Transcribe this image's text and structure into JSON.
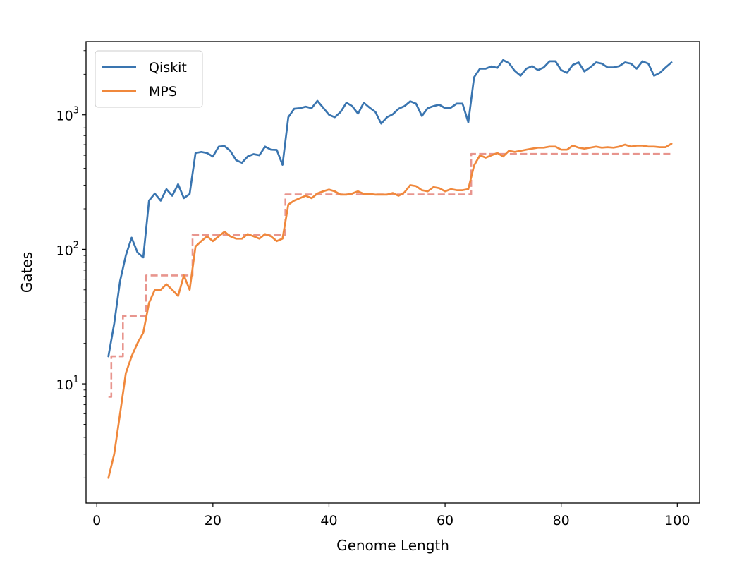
{
  "chart_data": {
    "type": "line",
    "title": "",
    "xlabel": "Genome Length",
    "ylabel": "Gates",
    "xlim": [
      -1.85,
      103.85
    ],
    "ylim": [
      1.3,
      3500
    ],
    "yscale": "log",
    "xticks": [
      0,
      20,
      40,
      60,
      80,
      100
    ],
    "yticks_major": [
      {
        "value": 10,
        "base": "10",
        "exp": "1"
      },
      {
        "value": 100,
        "base": "10",
        "exp": "2"
      },
      {
        "value": 1000,
        "base": "10",
        "exp": "3"
      }
    ],
    "grid": false,
    "legend": "upper-left",
    "series": [
      {
        "name": "Qiskit",
        "color": "#3a75b0",
        "style": "solid",
        "x": [
          2,
          3,
          4,
          5,
          6,
          7,
          8,
          9,
          10,
          11,
          12,
          13,
          14,
          15,
          16,
          17,
          18,
          19,
          20,
          21,
          22,
          23,
          24,
          25,
          26,
          27,
          28,
          29,
          30,
          31,
          32,
          33,
          34,
          35,
          36,
          37,
          38,
          39,
          40,
          41,
          42,
          43,
          44,
          45,
          46,
          47,
          48,
          49,
          50,
          51,
          52,
          53,
          54,
          55,
          56,
          57,
          58,
          59,
          60,
          61,
          62,
          63,
          64,
          65,
          66,
          67,
          68,
          69,
          70,
          71,
          72,
          73,
          74,
          75,
          76,
          77,
          78,
          79,
          80,
          81,
          82,
          83,
          84,
          85,
          86,
          87,
          88,
          89,
          90,
          91,
          92,
          93,
          94,
          95,
          96,
          97,
          98,
          99
        ],
        "values": [
          16,
          28,
          58,
          90,
          122,
          95,
          87,
          230,
          260,
          230,
          280,
          250,
          305,
          240,
          258,
          520,
          530,
          520,
          490,
          580,
          585,
          540,
          460,
          440,
          490,
          510,
          500,
          580,
          550,
          548,
          425,
          960,
          1110,
          1120,
          1150,
          1120,
          1270,
          1130,
          1000,
          960,
          1050,
          1230,
          1160,
          1020,
          1230,
          1130,
          1050,
          860,
          960,
          1010,
          1110,
          1160,
          1260,
          1210,
          980,
          1120,
          1160,
          1190,
          1120,
          1130,
          1210,
          1210,
          880,
          1900,
          2200,
          2200,
          2290,
          2230,
          2550,
          2420,
          2120,
          1950,
          2200,
          2300,
          2150,
          2250,
          2500,
          2500,
          2150,
          2050,
          2350,
          2450,
          2100,
          2250,
          2450,
          2400,
          2250,
          2250,
          2300,
          2450,
          2400,
          2200,
          2500,
          2400,
          1950,
          2050,
          2250,
          2450
        ]
      },
      {
        "name": "MPS",
        "color": "#f0883c",
        "style": "solid",
        "x": [
          2,
          3,
          4,
          5,
          6,
          7,
          8,
          9,
          10,
          11,
          12,
          13,
          14,
          15,
          16,
          17,
          18,
          19,
          20,
          21,
          22,
          23,
          24,
          25,
          26,
          27,
          28,
          29,
          30,
          31,
          32,
          33,
          34,
          35,
          36,
          37,
          38,
          39,
          40,
          41,
          42,
          43,
          44,
          45,
          46,
          47,
          48,
          49,
          50,
          51,
          52,
          53,
          54,
          55,
          56,
          57,
          58,
          59,
          60,
          61,
          62,
          63,
          64,
          65,
          66,
          67,
          68,
          69,
          70,
          71,
          72,
          73,
          74,
          75,
          76,
          77,
          78,
          79,
          80,
          81,
          82,
          83,
          84,
          85,
          86,
          87,
          88,
          89,
          90,
          91,
          92,
          93,
          94,
          95,
          96,
          97,
          98,
          99
        ],
        "values": [
          2,
          3,
          6,
          12,
          16,
          20,
          24,
          40,
          50,
          50,
          55,
          50,
          45,
          64,
          50,
          105,
          115,
          125,
          115,
          125,
          135,
          125,
          120,
          120,
          130,
          125,
          120,
          130,
          125,
          115,
          120,
          215,
          230,
          240,
          250,
          240,
          260,
          270,
          278,
          270,
          255,
          255,
          260,
          270,
          258,
          258,
          255,
          255,
          255,
          262,
          250,
          265,
          300,
          295,
          275,
          270,
          290,
          285,
          270,
          280,
          275,
          275,
          280,
          420,
          500,
          480,
          500,
          520,
          490,
          540,
          530,
          540,
          550,
          560,
          570,
          570,
          580,
          580,
          550,
          550,
          590,
          570,
          560,
          570,
          580,
          570,
          575,
          570,
          580,
          600,
          580,
          590,
          590,
          580,
          580,
          575,
          575,
          610
        ]
      },
      {
        "name": "",
        "color": "#e8958e",
        "style": "dashed",
        "x": [
          2,
          2.5,
          2.5,
          4.5,
          4.5,
          8.5,
          8.5,
          16.5,
          16.5,
          32.5,
          32.5,
          64.5,
          64.5,
          99
        ],
        "values": [
          8,
          8,
          16,
          16,
          32,
          32,
          64,
          64,
          128,
          128,
          256,
          256,
          512,
          512
        ]
      }
    ]
  }
}
